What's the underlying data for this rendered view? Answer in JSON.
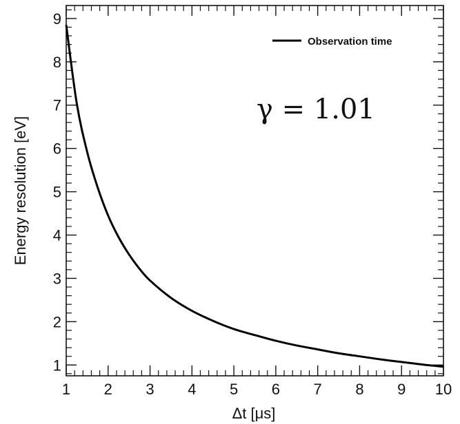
{
  "chart_data": {
    "type": "line",
    "title": "",
    "xlabel": "Δt [μs]",
    "ylabel": "Energy resolution [eV]",
    "xlim": [
      1,
      10
    ],
    "ylim": [
      0.75,
      9.3
    ],
    "xticks": [
      1,
      2,
      3,
      4,
      5,
      6,
      7,
      8,
      9,
      10
    ],
    "yticks": [
      1,
      2,
      3,
      4,
      5,
      6,
      7,
      8,
      9
    ],
    "grid": false,
    "legend_position": "top-right",
    "annotation": "γ = 1.01",
    "series": [
      {
        "name": "Observation time",
        "color": "#000000",
        "x": [
          1.0,
          1.25,
          1.5,
          1.75,
          2.0,
          2.25,
          2.5,
          2.75,
          3.0,
          3.5,
          4.0,
          4.5,
          5.0,
          5.5,
          6.0,
          6.5,
          7.0,
          7.5,
          8.0,
          8.5,
          9.0,
          9.5,
          10.0
        ],
        "y": [
          8.85,
          7.05,
          5.92,
          5.1,
          4.45,
          3.95,
          3.55,
          3.22,
          2.95,
          2.55,
          2.25,
          2.02,
          1.83,
          1.69,
          1.56,
          1.45,
          1.36,
          1.27,
          1.2,
          1.13,
          1.07,
          1.01,
          0.96
        ]
      }
    ]
  }
}
